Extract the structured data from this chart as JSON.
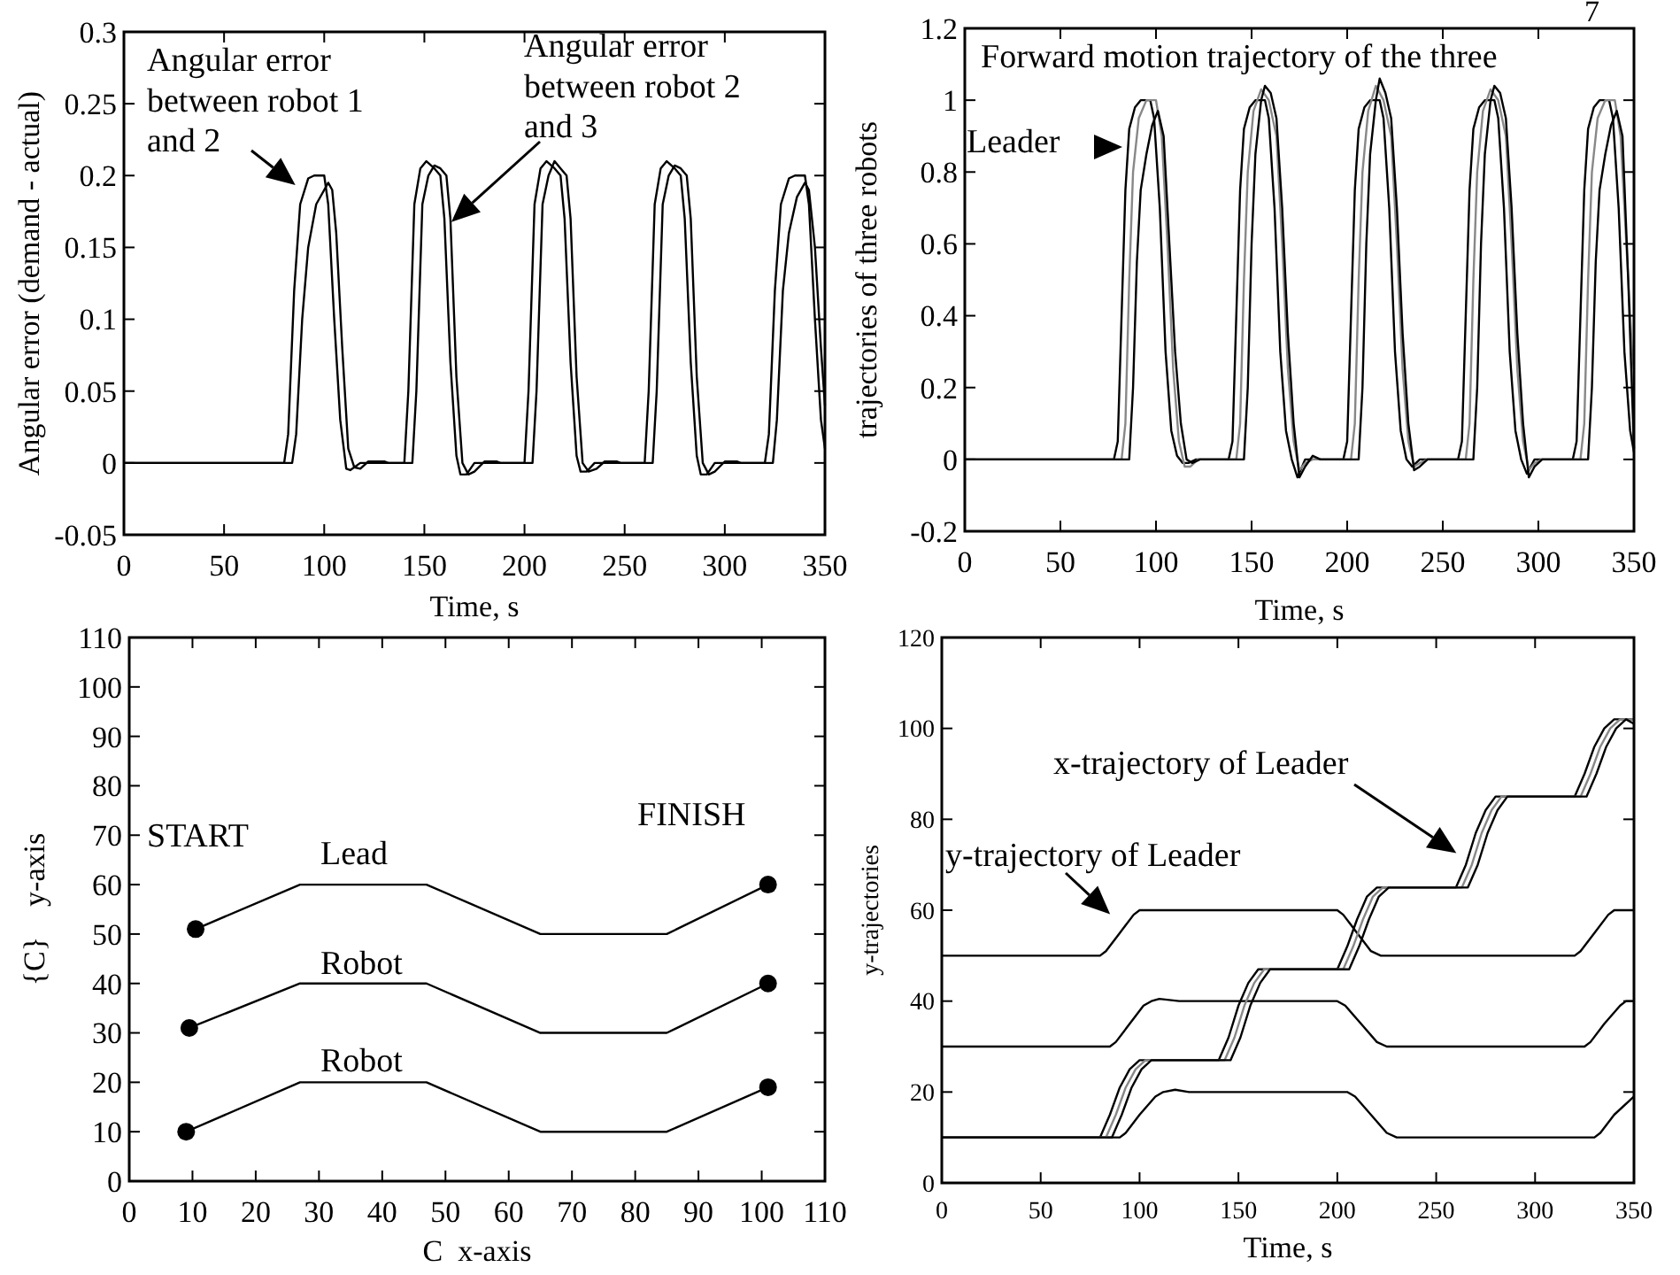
{
  "chart_data": [
    {
      "type": "line",
      "xlabel": "Time, s",
      "ylabel": "Angular error (demand - actual)",
      "xlim": [
        0,
        350
      ],
      "ylim": [
        -0.05,
        0.3
      ],
      "xticks": [
        0,
        50,
        100,
        150,
        200,
        250,
        300,
        350
      ],
      "yticks": [
        -0.05,
        0,
        0.05,
        0.1,
        0.15,
        0.2,
        0.25,
        0.3
      ],
      "annotations": [
        "Angular error between robot 1 and 2",
        "Angular error between robot 2 and 3"
      ],
      "series": [
        {
          "color": "#000000",
          "x": [
            0,
            80,
            82,
            85,
            88,
            92,
            95,
            100,
            102,
            105,
            108,
            111,
            113,
            118,
            140,
            142,
            145,
            148,
            151,
            155,
            158,
            160,
            163,
            166,
            168,
            171,
            175,
            200,
            202,
            205,
            208,
            211,
            215,
            218,
            220,
            223,
            226,
            228,
            231,
            235,
            260,
            262,
            265,
            268,
            271,
            275,
            278,
            280,
            283,
            286,
            288,
            291,
            295,
            320,
            322,
            325,
            328,
            332,
            335,
            340,
            342,
            345,
            348,
            350
          ],
          "values": [
            0,
            0,
            0.02,
            0.12,
            0.18,
            0.198,
            0.2,
            0.2,
            0.18,
            0.1,
            0.03,
            -0.004,
            -0.005,
            0,
            0,
            0.05,
            0.18,
            0.205,
            0.21,
            0.205,
            0.2,
            0.17,
            0.07,
            0.005,
            -0.008,
            -0.008,
            0,
            0,
            0.05,
            0.18,
            0.205,
            0.21,
            0.205,
            0.2,
            0.17,
            0.07,
            0.005,
            -0.006,
            -0.006,
            0,
            0,
            0.05,
            0.18,
            0.205,
            0.21,
            0.205,
            0.2,
            0.17,
            0.07,
            0.005,
            -0.008,
            -0.008,
            0,
            0,
            0.02,
            0.12,
            0.18,
            0.198,
            0.2,
            0.2,
            0.18,
            0.1,
            0.03,
            0.01
          ]
        },
        {
          "color": "#000000",
          "x": [
            0,
            84,
            86,
            89,
            92,
            96,
            100,
            102,
            104,
            106,
            109,
            112,
            115,
            118,
            122,
            130,
            132,
            144,
            146,
            149,
            152,
            155,
            158,
            161,
            163,
            166,
            169,
            172,
            175,
            180,
            186,
            188,
            204,
            206,
            209,
            212,
            215,
            218,
            221,
            223,
            226,
            229,
            232,
            236,
            240,
            246,
            248,
            264,
            266,
            269,
            272,
            275,
            278,
            281,
            283,
            286,
            289,
            292,
            295,
            300,
            306,
            308,
            324,
            326,
            329,
            332,
            336,
            340,
            342,
            345,
            348,
            350
          ],
          "values": [
            0,
            0,
            0.02,
            0.1,
            0.15,
            0.18,
            0.19,
            0.195,
            0.19,
            0.16,
            0.08,
            0.01,
            -0.003,
            -0.004,
            0.001,
            0.001,
            0,
            0,
            0.05,
            0.18,
            0.2,
            0.207,
            0.205,
            0.2,
            0.17,
            0.06,
            0,
            -0.008,
            -0.006,
            0.001,
            0.001,
            0,
            0,
            0.05,
            0.18,
            0.2,
            0.21,
            0.205,
            0.2,
            0.17,
            0.06,
            0,
            -0.006,
            -0.004,
            0.001,
            0.001,
            0,
            0,
            0.05,
            0.18,
            0.2,
            0.207,
            0.205,
            0.2,
            0.17,
            0.06,
            0,
            -0.008,
            -0.006,
            0.001,
            0.001,
            0,
            0,
            0.03,
            0.12,
            0.16,
            0.185,
            0.195,
            0.19,
            0.15,
            0.08,
            0.04
          ]
        }
      ]
    },
    {
      "type": "line",
      "xlabel": "Time, s",
      "ylabel": "trajectories of three robots",
      "xlim": [
        0,
        350
      ],
      "ylim": [
        -0.2,
        1.2
      ],
      "xticks": [
        0,
        50,
        100,
        150,
        200,
        250,
        300,
        350
      ],
      "yticks": [
        -0.2,
        0,
        0.2,
        0.4,
        0.6,
        0.8,
        1,
        1.2
      ],
      "annotations": [
        "Forward motion trajectory of the three",
        "Leader",
        "7"
      ],
      "series": [
        {
          "color": "#000000",
          "x": [
            0,
            78,
            80,
            82,
            84,
            86,
            89,
            92,
            97,
            99,
            102,
            105,
            108,
            111,
            114,
            117,
            121,
            138,
            140,
            142,
            144,
            146,
            149,
            152,
            157,
            159,
            162,
            165,
            168,
            171,
            174,
            178,
            198,
            200,
            202,
            204,
            206,
            209,
            212,
            217,
            219,
            222,
            225,
            228,
            231,
            234,
            238,
            258,
            260,
            262,
            264,
            266,
            269,
            272,
            277,
            279,
            282,
            285,
            288,
            291,
            294,
            298,
            318,
            320,
            322,
            324,
            326,
            329,
            332,
            337,
            339,
            342,
            345,
            348,
            350
          ],
          "values": [
            0,
            0,
            0.05,
            0.4,
            0.75,
            0.92,
            0.98,
            1,
            1,
            0.95,
            0.7,
            0.3,
            0.08,
            0.01,
            -0.01,
            -0.01,
            0,
            0,
            0.05,
            0.4,
            0.75,
            0.92,
            0.98,
            1,
            1,
            0.95,
            0.7,
            0.3,
            0.08,
            0,
            -0.05,
            0,
            0,
            0.05,
            0.4,
            0.75,
            0.92,
            0.98,
            1,
            1,
            0.95,
            0.7,
            0.3,
            0.08,
            0,
            -0.02,
            0,
            0,
            0.05,
            0.4,
            0.75,
            0.92,
            0.98,
            1,
            1,
            0.95,
            0.7,
            0.3,
            0.08,
            0,
            -0.04,
            0,
            0,
            0.05,
            0.4,
            0.75,
            0.92,
            0.98,
            1,
            1,
            0.95,
            0.7,
            0.3,
            0.08,
            0.02
          ]
        },
        {
          "color": "#888888",
          "x": [
            0,
            82,
            84,
            86,
            88,
            91,
            95,
            100,
            103,
            106,
            109,
            112,
            115,
            118,
            122,
            142,
            144,
            146,
            148,
            151,
            155,
            159,
            163,
            166,
            169,
            172,
            175,
            178,
            182,
            202,
            204,
            206,
            208,
            211,
            215,
            219,
            223,
            226,
            229,
            232,
            235,
            238,
            242,
            262,
            264,
            266,
            268,
            271,
            275,
            279,
            283,
            286,
            289,
            292,
            295,
            298,
            302,
            322,
            324,
            326,
            328,
            331,
            335,
            340,
            343,
            346,
            349,
            350
          ],
          "values": [
            0,
            0,
            0.1,
            0.5,
            0.8,
            0.95,
            1,
            1,
            0.9,
            0.6,
            0.25,
            0.05,
            -0.02,
            -0.02,
            0,
            0,
            0.1,
            0.5,
            0.8,
            0.97,
            1.03,
            1,
            0.9,
            0.6,
            0.25,
            0.05,
            -0.03,
            -0.01,
            0,
            0,
            0.1,
            0.5,
            0.8,
            0.97,
            1.04,
            1,
            0.9,
            0.6,
            0.25,
            0.05,
            -0.02,
            -0.01,
            0,
            0,
            0.1,
            0.5,
            0.8,
            0.97,
            1.03,
            1,
            0.9,
            0.6,
            0.25,
            0.05,
            -0.03,
            -0.01,
            0,
            0,
            0.1,
            0.5,
            0.8,
            0.95,
            1,
            1,
            0.9,
            0.6,
            0.3,
            0.25
          ]
        },
        {
          "color": "#000000",
          "x": [
            0,
            86,
            88,
            90,
            92,
            95,
            98,
            101,
            104,
            107,
            110,
            113,
            116,
            119,
            123,
            146,
            148,
            150,
            152,
            155,
            157,
            160,
            163,
            166,
            169,
            172,
            175,
            178,
            182,
            186,
            206,
            208,
            210,
            212,
            215,
            217,
            220,
            223,
            226,
            229,
            232,
            235,
            238,
            242,
            266,
            268,
            270,
            272,
            275,
            277,
            280,
            283,
            286,
            289,
            292,
            295,
            298,
            302,
            326,
            328,
            330,
            332,
            335,
            338,
            341,
            344,
            347,
            350
          ],
          "values": [
            0,
            0,
            0.2,
            0.55,
            0.75,
            0.85,
            0.93,
            0.97,
            0.9,
            0.6,
            0.3,
            0.1,
            0,
            -0.01,
            0,
            0,
            0.2,
            0.6,
            0.85,
            1,
            1.04,
            1.02,
            0.95,
            0.7,
            0.35,
            0.1,
            -0.05,
            -0.02,
            0.01,
            0,
            0,
            0.2,
            0.6,
            0.85,
            1,
            1.06,
            1.02,
            0.95,
            0.7,
            0.35,
            0.1,
            -0.03,
            -0.02,
            0,
            0,
            0.2,
            0.6,
            0.85,
            1,
            1.04,
            1.02,
            0.95,
            0.7,
            0.35,
            0.1,
            -0.05,
            -0.02,
            0,
            0,
            0.2,
            0.55,
            0.75,
            0.85,
            0.93,
            0.97,
            0.9,
            0.5,
            0.03
          ]
        }
      ]
    },
    {
      "type": "line",
      "xlabel": "C  x-axis",
      "ylabel": "{C}    y-axis",
      "xlim": [
        0,
        110
      ],
      "ylim": [
        0,
        110
      ],
      "xticks": [
        0,
        10,
        20,
        30,
        40,
        50,
        60,
        70,
        80,
        90,
        100,
        110
      ],
      "yticks": [
        0,
        10,
        20,
        30,
        40,
        50,
        60,
        70,
        80,
        90,
        100,
        110
      ],
      "annotations": [
        "START",
        "FINISH",
        "Lead",
        "Robot",
        "Robot"
      ],
      "series": [
        {
          "color": "#000000",
          "x": [
            10.5,
            27,
            47,
            65,
            85,
            101
          ],
          "values": [
            51,
            60,
            60,
            50,
            50,
            60
          ]
        },
        {
          "color": "#000000",
          "x": [
            9.5,
            27,
            47,
            65,
            85,
            101
          ],
          "values": [
            31,
            40,
            40,
            30,
            30,
            40
          ]
        },
        {
          "color": "#000000",
          "x": [
            9,
            27,
            47,
            65,
            85,
            101
          ],
          "values": [
            10,
            20,
            20,
            10,
            10,
            19
          ]
        },
        {
          "type": "scatter",
          "marker": "circle",
          "color": "#000000",
          "x": [
            10.5,
            9.5,
            9,
            101,
            101,
            101
          ],
          "values": [
            51,
            31,
            10,
            60,
            40,
            19
          ]
        }
      ]
    },
    {
      "type": "line",
      "xlabel": "Time, s",
      "ylabel": "y-trajectories",
      "xlim": [
        0,
        350
      ],
      "ylim": [
        0,
        120
      ],
      "xticks": [
        0,
        50,
        100,
        150,
        200,
        250,
        300,
        350
      ],
      "yticks": [
        0,
        20,
        40,
        60,
        80,
        100,
        120
      ],
      "annotations": [
        "x-trajectory of Leader",
        "y-trajectory of Leader"
      ],
      "series": [
        {
          "color": "#000000",
          "x": [
            0,
            80,
            83,
            90,
            97,
            100,
            200,
            203,
            210,
            217,
            222,
            320,
            323,
            330,
            337,
            340,
            350
          ],
          "values": [
            50,
            50,
            51,
            55,
            59,
            60,
            60,
            59,
            55,
            51,
            50,
            50,
            51,
            55,
            59,
            60,
            60
          ]
        },
        {
          "color": "#000000",
          "x": [
            0,
            85,
            88,
            95,
            102,
            106,
            110,
            120,
            200,
            204,
            212,
            220,
            225,
            325,
            328,
            335,
            343,
            346,
            350
          ],
          "values": [
            30,
            30,
            31,
            35,
            39,
            40,
            40.5,
            40,
            40,
            39,
            35,
            31,
            30,
            30,
            31,
            35,
            39,
            40,
            40
          ]
        },
        {
          "color": "#000000",
          "x": [
            0,
            90,
            93,
            100,
            108,
            112,
            118,
            125,
            205,
            209,
            217,
            225,
            230,
            330,
            333,
            340,
            350
          ],
          "values": [
            10,
            10,
            11,
            15,
            19,
            20,
            20.5,
            20,
            20,
            19,
            15,
            11,
            10,
            10,
            11,
            15,
            19
          ]
        },
        {
          "color": "#000000",
          "x": [
            0,
            80,
            85,
            90,
            95,
            100,
            140,
            145,
            150,
            155,
            160,
            200,
            205,
            210,
            215,
            220,
            260,
            265,
            270,
            275,
            280,
            320,
            325,
            330,
            335,
            340,
            350
          ],
          "values": [
            10,
            10,
            15,
            21,
            25,
            27,
            27,
            32,
            39,
            44,
            47,
            47,
            52,
            58,
            63,
            65,
            65,
            70,
            77,
            82,
            85,
            85,
            90,
            96,
            100,
            102,
            102
          ]
        },
        {
          "color": "#888888",
          "x": [
            0,
            83,
            88,
            93,
            98,
            103,
            143,
            148,
            153,
            158,
            163,
            203,
            208,
            213,
            218,
            223,
            263,
            268,
            273,
            278,
            283,
            323,
            328,
            333,
            338,
            343,
            350
          ],
          "values": [
            10,
            10,
            15,
            21,
            25,
            27,
            27,
            32,
            39,
            44,
            47,
            47,
            52,
            58,
            63,
            65,
            65,
            70,
            77,
            82,
            85,
            85,
            90,
            96,
            100,
            102,
            102
          ]
        },
        {
          "color": "#000000",
          "x": [
            0,
            86,
            91,
            96,
            101,
            106,
            146,
            151,
            156,
            161,
            166,
            206,
            211,
            216,
            221,
            226,
            266,
            271,
            276,
            281,
            286,
            326,
            331,
            336,
            341,
            346,
            350
          ],
          "values": [
            10,
            10,
            15,
            21,
            25,
            27,
            27,
            32,
            39,
            44,
            47,
            47,
            52,
            58,
            63,
            65,
            65,
            70,
            77,
            82,
            85,
            85,
            90,
            96,
            100,
            102,
            101
          ]
        }
      ]
    }
  ]
}
